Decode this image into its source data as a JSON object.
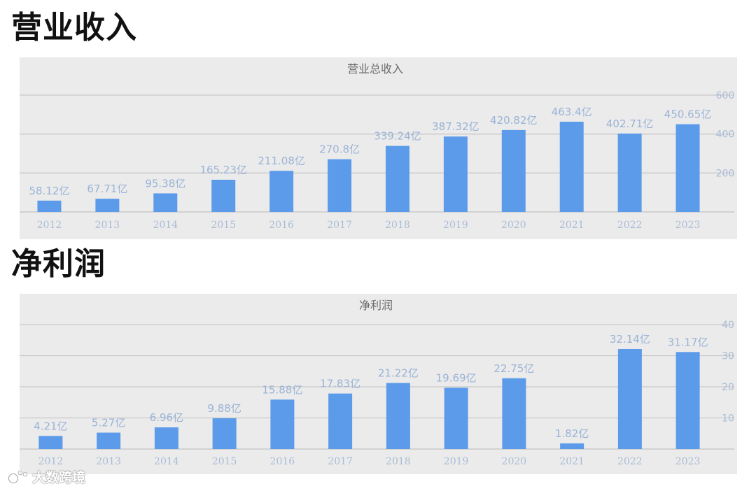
{
  "headings": {
    "revenue": "营业收入",
    "profit": "净利润"
  },
  "watermark": {
    "text": "大数跨境",
    "icon": "cat-paw-logo-icon"
  },
  "colors": {
    "bar": "#5b9bea",
    "label": "#9ab3d6",
    "axis_text": "#a9bcd6",
    "grid": "#c9c9c9",
    "panel": "#ebebeb",
    "title": "#6b6b6b"
  },
  "chart_data": [
    {
      "type": "bar",
      "title": "营业总收入",
      "categories": [
        "2012",
        "2013",
        "2014",
        "2015",
        "2016",
        "2017",
        "2018",
        "2019",
        "2020",
        "2021",
        "2022",
        "2023"
      ],
      "values": [
        58.12,
        67.71,
        95.38,
        165.23,
        211.08,
        270.8,
        339.24,
        387.32,
        420.82,
        463.4,
        402.71,
        450.65
      ],
      "data_labels": [
        "58.12亿",
        "67.71亿",
        "95.38亿",
        "165.23亿",
        "211.08亿",
        "270.8亿",
        "339.24亿",
        "387.32亿",
        "420.82亿",
        "463.4亿",
        "402.71亿",
        "450.65亿"
      ],
      "ylim": [
        0,
        600
      ],
      "yticks": [
        200,
        400,
        600
      ],
      "y_axis_side": "right",
      "grid": true
    },
    {
      "type": "bar",
      "title": "净利润",
      "categories": [
        "2012",
        "2013",
        "2014",
        "2015",
        "2016",
        "2017",
        "2018",
        "2019",
        "2020",
        "2021",
        "2022",
        "2023"
      ],
      "values": [
        4.21,
        5.27,
        6.96,
        9.88,
        15.88,
        17.83,
        21.22,
        19.69,
        22.75,
        1.82,
        32.14,
        31.17
      ],
      "data_labels": [
        "4.21亿",
        "5.27亿",
        "6.96亿",
        "9.88亿",
        "15.88亿",
        "17.83亿",
        "21.22亿",
        "19.69亿",
        "22.75亿",
        "1.82亿",
        "32.14亿",
        "31.17亿"
      ],
      "ylim": [
        0,
        40
      ],
      "yticks": [
        10,
        20,
        30,
        40
      ],
      "y_axis_side": "right",
      "grid": true
    }
  ]
}
